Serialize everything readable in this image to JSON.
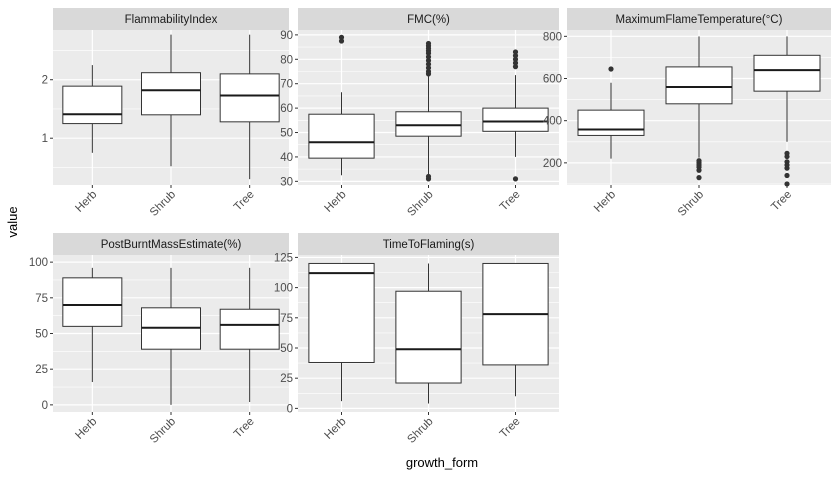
{
  "figure": {
    "xlabel": "growth_form",
    "ylabel": "value",
    "background": "#EBEBEB",
    "strip_background": "#D9D9D9",
    "gridline_color": "#FFFFFF"
  },
  "chart_data": [
    {
      "type": "boxplot",
      "title": "FlammabilityIndex",
      "categories": [
        "Herb",
        "Shrub",
        "Tree"
      ],
      "ylim": [
        0.2,
        2.85
      ],
      "yticks": [
        1,
        2
      ],
      "ytick_labels": [
        "1",
        "2"
      ],
      "boxes": [
        {
          "category": "Herb",
          "whisker_low": 0.75,
          "q1": 1.25,
          "median": 1.41,
          "q3": 1.89,
          "whisker_high": 2.25,
          "outliers": []
        },
        {
          "category": "Shrub",
          "whisker_low": 0.52,
          "q1": 1.4,
          "median": 1.82,
          "q3": 2.12,
          "whisker_high": 2.77,
          "outliers": []
        },
        {
          "category": "Tree",
          "whisker_low": 0.3,
          "q1": 1.28,
          "median": 1.73,
          "q3": 2.1,
          "whisker_high": 2.77,
          "outliers": []
        }
      ]
    },
    {
      "type": "boxplot",
      "title": "FMC(%)",
      "categories": [
        "Herb",
        "Shrub",
        "Tree"
      ],
      "ylim": [
        28.5,
        92
      ],
      "yticks": [
        30,
        40,
        50,
        60,
        70,
        80,
        90
      ],
      "ytick_labels": [
        "30",
        "40",
        "50",
        "60",
        "70",
        "80",
        "90"
      ],
      "boxes": [
        {
          "category": "Herb",
          "whisker_low": 32.5,
          "q1": 39.5,
          "median": 46,
          "q3": 57.5,
          "whisker_high": 66.5,
          "outliers": [
            87.5,
            89
          ]
        },
        {
          "category": "Shrub",
          "whisker_low": 33,
          "q1": 48.5,
          "median": 53,
          "q3": 58.5,
          "whisker_high": 73,
          "outliers": [
            31,
            32,
            74,
            75,
            76.5,
            78,
            79.5,
            81,
            82.5,
            83.5,
            84.5,
            85.5,
            86.5
          ]
        },
        {
          "category": "Tree",
          "whisker_low": 40,
          "q1": 50.5,
          "median": 54.5,
          "q3": 60,
          "whisker_high": 73.5,
          "outliers": [
            31,
            77,
            78.5,
            80,
            81.5,
            83
          ]
        }
      ]
    },
    {
      "type": "boxplot",
      "title": "MaximumFlameTemperature(°C)",
      "categories": [
        "Herb",
        "Shrub",
        "Tree"
      ],
      "ylim": [
        95,
        830
      ],
      "yticks": [
        200,
        400,
        600,
        800
      ],
      "ytick_labels": [
        "200",
        "400",
        "600",
        "800"
      ],
      "boxes": [
        {
          "category": "Herb",
          "whisker_low": 220,
          "q1": 330,
          "median": 358,
          "q3": 450,
          "whisker_high": 580,
          "outliers": [
            645
          ]
        },
        {
          "category": "Shrub",
          "whisker_low": 225,
          "q1": 480,
          "median": 560,
          "q3": 655,
          "whisker_high": 800,
          "outliers": [
            130,
            165,
            180,
            190,
            200,
            210
          ]
        },
        {
          "category": "Tree",
          "whisker_low": 300,
          "q1": 540,
          "median": 640,
          "q3": 710,
          "whisker_high": 800,
          "outliers": [
            100,
            140,
            175,
            190,
            205,
            230,
            245
          ]
        }
      ]
    },
    {
      "type": "boxplot",
      "title": "PostBurntMassEstimate(%)",
      "categories": [
        "Herb",
        "Shrub",
        "Tree"
      ],
      "ylim": [
        -5,
        105
      ],
      "yticks": [
        0,
        25,
        50,
        75,
        100
      ],
      "ytick_labels": [
        "0",
        "25",
        "50",
        "75",
        "100"
      ],
      "boxes": [
        {
          "category": "Herb",
          "whisker_low": 16,
          "q1": 55,
          "median": 70,
          "q3": 89,
          "whisker_high": 96,
          "outliers": []
        },
        {
          "category": "Shrub",
          "whisker_low": 0,
          "q1": 39,
          "median": 54,
          "q3": 68,
          "whisker_high": 96,
          "outliers": []
        },
        {
          "category": "Tree",
          "whisker_low": 2,
          "q1": 39,
          "median": 56,
          "q3": 67,
          "whisker_high": 96,
          "outliers": []
        }
      ]
    },
    {
      "type": "boxplot",
      "title": "TimeToFlaming(s)",
      "categories": [
        "Herb",
        "Shrub",
        "Tree"
      ],
      "ylim": [
        -3,
        127
      ],
      "yticks": [
        0,
        25,
        50,
        75,
        100,
        125
      ],
      "ytick_labels": [
        "0",
        "25",
        "50",
        "75",
        "100",
        "125"
      ],
      "boxes": [
        {
          "category": "Herb",
          "whisker_low": 6,
          "q1": 38,
          "median": 112,
          "q3": 120,
          "whisker_high": 120,
          "outliers": []
        },
        {
          "category": "Shrub",
          "whisker_low": 4,
          "q1": 21,
          "median": 49,
          "q3": 97,
          "whisker_high": 120,
          "outliers": []
        },
        {
          "category": "Tree",
          "whisker_low": 10,
          "q1": 36,
          "median": 78,
          "q3": 120,
          "whisker_high": 120,
          "outliers": []
        }
      ]
    }
  ]
}
